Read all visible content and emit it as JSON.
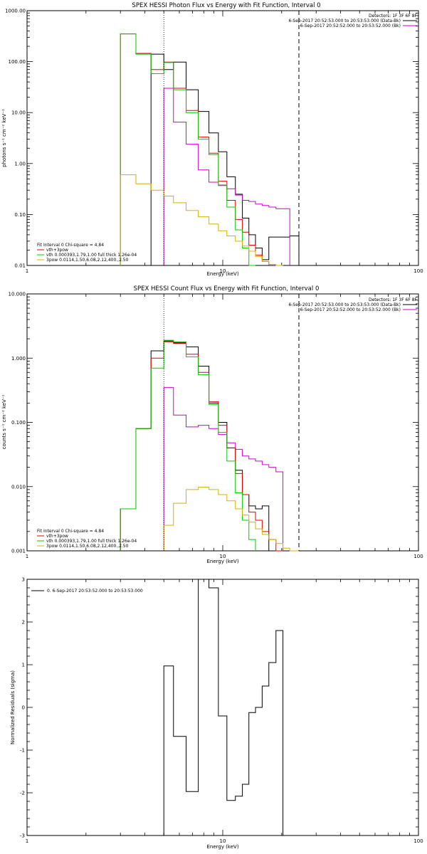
{
  "chart_data": [
    {
      "type": "line",
      "title": "SPEX HESSI Photon Flux vs Energy with Fit Function, Interval 0",
      "xlabel": "Energy (keV)",
      "ylabel": "photons s⁻¹ cm⁻² keV⁻¹",
      "xscale": "log",
      "yscale": "log",
      "xlim": [
        1,
        100
      ],
      "ylim": [
        0.01,
        1000
      ],
      "xticks": [
        "1",
        "10",
        "100"
      ],
      "yticks": [
        "0.01",
        "0.10",
        "1.00",
        "10.00",
        "100.00",
        "1000.00"
      ],
      "edges": [
        3,
        3.6,
        4.3,
        5,
        5.6,
        6.5,
        7.5,
        8.5,
        9.5,
        10.5,
        11.6,
        12.6,
        13.6,
        14.7,
        15.9,
        17.2,
        18.7,
        20.3,
        22,
        24.5
      ],
      "vlines": {
        "dotted": 5,
        "dashed": 24.5
      },
      "legend_top": {
        "detectors": "Detectors: 1F 3F 6F 8F",
        "entries": [
          {
            "label": "6-Sep-2017 20:52:53.000 to 20:53:53.000 (Data-Bk)",
            "color": "#000000"
          },
          {
            "label": "6-Sep-2017 20:52:52.000 to 20:53:52.000 (Bk)",
            "color": "#d000d0"
          }
        ]
      },
      "legend_bottom": {
        "header": "Fit Interval 0   Chi-square = 4.84",
        "entries": [
          {
            "label": "vth+3pow",
            "color": "#e00000"
          },
          {
            "label": "vth 0.000393,1.79,1.00  full thick 1.26e-04",
            "color": "#00cc00"
          },
          {
            "label": "3pow 0.0114,1.50,6.08,2.12,400.,2.50",
            "color": "#d8b000"
          }
        ]
      },
      "series": [
        {
          "key": "data",
          "color": "#000000",
          "from": 4.3,
          "values": [
            140,
            70,
            98,
            28,
            10.5,
            4,
            1.7,
            0.55,
            0.25,
            0.085,
            0.04,
            0.022,
            0.013,
            0.036,
            0.036,
            0.036,
            0.038
          ]
        },
        {
          "key": "bk",
          "color": "#d000d0",
          "from": 5,
          "values": [
            30,
            6.5,
            2.4,
            0.75,
            0.43,
            0.37,
            0.32,
            0.24,
            0.19,
            0.18,
            0.16,
            0.15,
            0.14,
            0.13,
            0.13
          ]
        },
        {
          "key": "total",
          "color": "#e00000",
          "from": 3,
          "values": [
            350,
            145,
            70,
            98,
            30,
            11,
            3.3,
            1.6,
            0.45,
            0.19,
            0.08,
            0.045,
            0.025,
            0.016,
            0.012
          ]
        },
        {
          "key": "thermal",
          "color": "#00cc00",
          "from": 3,
          "values": [
            350,
            140,
            58,
            96,
            28,
            10,
            3,
            1.5,
            0.38,
            0.14,
            0.05,
            0.022,
            0.01
          ]
        },
        {
          "key": "powerlaw",
          "color": "#d8b000",
          "from": 3,
          "values": [
            0.6,
            0.4,
            0.3,
            0.23,
            0.17,
            0.12,
            0.09,
            0.065,
            0.048,
            0.038,
            0.03,
            0.024,
            0.019,
            0.015,
            0.012,
            0.0105,
            0.01
          ]
        }
      ]
    },
    {
      "type": "line",
      "title": "SPEX HESSI Count Flux vs Energy with Fit Function, Interval 0",
      "xlabel": "Energy (keV)",
      "ylabel": "counts s⁻¹ cm⁻² keV⁻¹",
      "xscale": "log",
      "yscale": "log",
      "xlim": [
        1,
        100
      ],
      "ylim": [
        0.001,
        10
      ],
      "xticks": [
        "1",
        "10",
        "100"
      ],
      "yticks": [
        "0.001",
        "0.010",
        "0.100",
        "1.000",
        "10.000"
      ],
      "edges": [
        3,
        3.6,
        4.3,
        5,
        5.6,
        6.5,
        7.5,
        8.5,
        9.5,
        10.5,
        11.6,
        12.6,
        13.6,
        14.7,
        15.9,
        17.2,
        18.7,
        20.3,
        22,
        24.5,
        27,
        30,
        33
      ],
      "vlines": {
        "dotted": 5,
        "dashed": 24.5
      },
      "legend_top": {
        "detectors": "Detectors: 1F 3F 6F 8F",
        "entries": [
          {
            "label": "6-Sep-2017 20:52:53.000 to 20:53:53.000 (Data-Bk)",
            "color": "#000000"
          },
          {
            "label": "6-Sep-2017 20:52:52.000 to 20:53:52.000 (Bk)",
            "color": "#d000d0"
          }
        ]
      },
      "legend_bottom": {
        "header": "Fit Interval 0   Chi-square = 4.84",
        "entries": [
          {
            "label": "vth+3pow",
            "color": "#e00000"
          },
          {
            "label": "vth 0.000393,1.79,1.00  full thick 1.26e-04",
            "color": "#00cc00"
          },
          {
            "label": "3pow 0.0114,1.50,6.08,2.12,400.,2.50",
            "color": "#d8b000"
          }
        ]
      },
      "series": [
        {
          "key": "data",
          "color": "#000000",
          "from": 3,
          "values": [
            0.0045,
            0.08,
            1.3,
            1.85,
            1.75,
            1.5,
            0.75,
            0.2,
            0.1,
            0.04,
            0.018,
            0.0075,
            0.005,
            0.0045,
            0.005
          ]
        },
        {
          "key": "bk",
          "color": "#d000d0",
          "from": 5,
          "values": [
            0.35,
            0.13,
            0.085,
            0.09,
            0.08,
            0.065,
            0.048,
            0.038,
            0.03,
            0.027,
            0.025,
            0.022,
            0.02,
            0.017
          ]
        },
        {
          "key": "total",
          "color": "#e00000",
          "from": 3,
          "values": [
            0.0045,
            0.08,
            1.0,
            1.8,
            1.7,
            1.15,
            0.6,
            0.21,
            0.09,
            0.04,
            0.016,
            0.0075,
            0.004,
            0.003,
            0.002,
            0.0015,
            0.001
          ]
        },
        {
          "key": "thermal",
          "color": "#00cc00",
          "from": 3,
          "values": [
            0.0045,
            0.08,
            0.7,
            1.9,
            1.8,
            1.05,
            0.55,
            0.19,
            0.07,
            0.025,
            0.008,
            0.003,
            0.0015
          ]
        },
        {
          "key": "powerlaw",
          "color": "#d8b000",
          "from": 5,
          "values": [
            0.0025,
            0.0055,
            0.009,
            0.0098,
            0.009,
            0.0075,
            0.006,
            0.0045,
            0.0036,
            0.0028,
            0.0022,
            0.0018,
            0.0015,
            0.0013,
            0.0011,
            0.001
          ]
        }
      ]
    },
    {
      "type": "line",
      "title": "",
      "xlabel": "Energy (keV)",
      "ylabel": "Normalized Residuals (sigma)",
      "xscale": "log",
      "yscale": "linear",
      "xlim": [
        1,
        100
      ],
      "ylim": [
        -3,
        3
      ],
      "xticks": [
        "1",
        "10",
        "100"
      ],
      "yticks": [
        "-3",
        "-2",
        "-1",
        "0",
        "1",
        "2",
        "3"
      ],
      "edges": [
        5,
        5.6,
        6.5,
        7.5,
        8.5,
        9.5,
        10.5,
        11.6,
        12.6,
        13.6,
        14.7,
        15.9,
        17.2,
        18.7,
        20.3,
        22,
        24.5
      ],
      "legend_top": {
        "entries": [
          {
            "label": "0.  6-Sep-2017 20:53:52.000 to 20:53:53.000",
            "color": "#000000"
          }
        ]
      },
      "series": [
        {
          "key": "residuals",
          "color": "#000000",
          "from": 5,
          "values": [
            0.97,
            -0.68,
            -1.97,
            3.2,
            2.8,
            -0.2,
            -2.18,
            -2.08,
            -1.8,
            -0.12,
            0.0,
            0.5,
            1.05,
            1.8
          ]
        }
      ]
    }
  ]
}
